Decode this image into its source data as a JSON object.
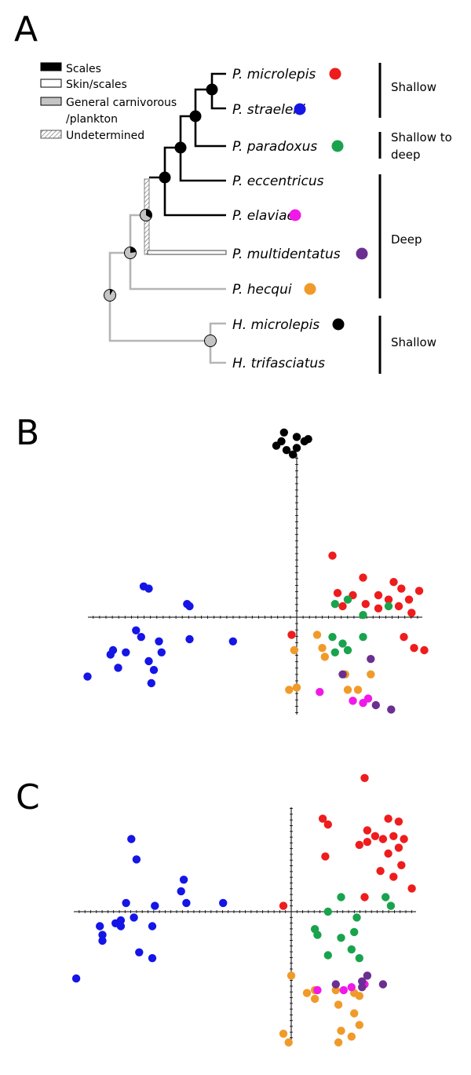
{
  "panels": {
    "a": "A",
    "b": "B",
    "c": "C"
  },
  "legend": {
    "items": [
      {
        "label": "Scales",
        "swatch": "solid-black"
      },
      {
        "label": "Skin/scales",
        "swatch": "white"
      },
      {
        "label": "General carnivorous",
        "swatch": "grey"
      },
      {
        "label": "/plankton",
        "swatch": "none"
      },
      {
        "label": "Undetermined",
        "swatch": "hatched"
      }
    ]
  },
  "tree": {
    "taxa": [
      {
        "name": "P. microlepis",
        "color": "#ee1c1c"
      },
      {
        "name": "P. straeleni",
        "color": "#1515e6"
      },
      {
        "name": "P. paradoxus",
        "color": "#19a34d"
      },
      {
        "name": "P. eccentricus",
        "color": ""
      },
      {
        "name": "P. elaviae",
        "color": "#f019e8"
      },
      {
        "name": "P. multidentatus",
        "color": "#6b2f91"
      },
      {
        "name": "P. hecqui",
        "color": "#f09a2a"
      },
      {
        "name": "H. microlepis",
        "color": "#000000"
      },
      {
        "name": "H. trifasciatus",
        "color": ""
      }
    ],
    "depth_groups": [
      {
        "lines": [
          "Shallow"
        ]
      },
      {
        "lines": [
          "Shallow to",
          "deep"
        ]
      },
      {
        "lines": [
          "Deep"
        ]
      },
      {
        "lines": [
          "Shallow"
        ]
      }
    ]
  },
  "chart_data": [
    {
      "type": "scatter",
      "title": "",
      "xlabel": "",
      "ylabel": "",
      "grid": false,
      "series": [
        {
          "color": "#000000",
          "points": [
            [
              -0.5,
              8.4
            ],
            [
              -0.8,
              7.8
            ],
            [
              -0.4,
              7.6
            ],
            [
              0.0,
              7.7
            ],
            [
              0.0,
              8.2
            ],
            [
              0.3,
              8.0
            ],
            [
              -0.15,
              7.4
            ],
            [
              -0.6,
              8.0
            ],
            [
              0.45,
              8.1
            ]
          ]
        },
        {
          "color": "#ee1c1c",
          "points": [
            [
              1.4,
              2.8
            ],
            [
              2.6,
              1.8
            ],
            [
              3.2,
              1.0
            ],
            [
              3.8,
              1.6
            ],
            [
              4.1,
              1.3
            ],
            [
              4.4,
              0.8
            ],
            [
              4.8,
              1.2
            ],
            [
              4.5,
              0.2
            ],
            [
              3.6,
              0.8
            ],
            [
              4.0,
              0.5
            ],
            [
              1.6,
              1.1
            ],
            [
              2.2,
              1.0
            ],
            [
              2.7,
              0.6
            ],
            [
              3.2,
              0.4
            ],
            [
              4.6,
              -1.4
            ],
            [
              4.2,
              -0.9
            ],
            [
              5.0,
              -1.5
            ],
            [
              -0.2,
              -0.8
            ],
            [
              1.8,
              0.5
            ]
          ]
        },
        {
          "color": "#19a34d",
          "points": [
            [
              2.0,
              0.8
            ],
            [
              1.5,
              0.6
            ],
            [
              3.6,
              0.5
            ],
            [
              2.6,
              0.1
            ],
            [
              1.4,
              -0.9
            ],
            [
              1.8,
              -1.2
            ],
            [
              2.6,
              -0.9
            ],
            [
              1.5,
              -1.6
            ],
            [
              2.0,
              -1.5
            ]
          ]
        },
        {
          "color": "#1515e6",
          "points": [
            [
              -6.0,
              1.4
            ],
            [
              -5.8,
              1.3
            ],
            [
              -4.3,
              0.6
            ],
            [
              -4.2,
              0.5
            ],
            [
              -6.3,
              -0.6
            ],
            [
              -6.1,
              -0.9
            ],
            [
              -5.4,
              -1.1
            ],
            [
              -7.2,
              -1.5
            ],
            [
              -7.3,
              -1.7
            ],
            [
              -6.7,
              -1.6
            ],
            [
              -5.3,
              -1.6
            ],
            [
              -5.8,
              -2.0
            ],
            [
              -7.0,
              -2.3
            ],
            [
              -5.6,
              -2.4
            ],
            [
              -8.2,
              -2.7
            ],
            [
              -5.7,
              -3.0
            ],
            [
              -4.2,
              -1.0
            ],
            [
              -2.5,
              -1.1
            ]
          ]
        },
        {
          "color": "#f09a2a",
          "points": [
            [
              0.8,
              -0.8
            ],
            [
              -0.1,
              -1.5
            ],
            [
              1.0,
              -1.4
            ],
            [
              1.1,
              -1.8
            ],
            [
              0.0,
              -3.2
            ],
            [
              -0.3,
              -3.3
            ],
            [
              1.9,
              -2.6
            ],
            [
              2.9,
              -2.6
            ],
            [
              2.0,
              -3.3
            ],
            [
              2.4,
              -3.3
            ]
          ]
        },
        {
          "color": "#f019e8",
          "points": [
            [
              0.9,
              -3.4
            ],
            [
              2.2,
              -3.8
            ],
            [
              2.6,
              -3.9
            ],
            [
              2.8,
              -3.7
            ]
          ]
        },
        {
          "color": "#6b2f91",
          "points": [
            [
              2.9,
              -1.9
            ],
            [
              1.8,
              -2.6
            ],
            [
              3.1,
              -4.0
            ],
            [
              3.7,
              -4.2
            ]
          ]
        }
      ]
    },
    {
      "type": "scatter",
      "title": "",
      "xlabel": "",
      "ylabel": "",
      "grid": false,
      "series": [
        {
          "color": "#ee1c1c",
          "points": [
            [
              2.8,
              4.6
            ],
            [
              1.2,
              3.2
            ],
            [
              1.4,
              3.0
            ],
            [
              2.9,
              2.8
            ],
            [
              3.7,
              3.2
            ],
            [
              4.1,
              3.1
            ],
            [
              2.9,
              2.4
            ],
            [
              3.2,
              2.6
            ],
            [
              3.5,
              2.5
            ],
            [
              3.9,
              2.6
            ],
            [
              4.3,
              2.5
            ],
            [
              4.1,
              2.2
            ],
            [
              2.6,
              2.3
            ],
            [
              3.7,
              2.0
            ],
            [
              4.2,
              1.6
            ],
            [
              1.3,
              1.9
            ],
            [
              3.4,
              1.4
            ],
            [
              3.9,
              1.2
            ],
            [
              4.6,
              0.8
            ],
            [
              2.8,
              0.5
            ],
            [
              -0.3,
              0.2
            ]
          ]
        },
        {
          "color": "#19a34d",
          "points": [
            [
              1.9,
              0.5
            ],
            [
              3.6,
              0.5
            ],
            [
              3.8,
              0.2
            ],
            [
              1.4,
              0.0
            ],
            [
              0.9,
              -0.6
            ],
            [
              1.0,
              -0.8
            ],
            [
              1.9,
              -0.9
            ],
            [
              2.4,
              -0.7
            ],
            [
              2.5,
              -0.2
            ],
            [
              1.4,
              -1.5
            ],
            [
              2.3,
              -1.3
            ],
            [
              2.6,
              -1.6
            ]
          ]
        },
        {
          "color": "#1515e6",
          "points": [
            [
              -6.1,
              2.5
            ],
            [
              -5.9,
              1.8
            ],
            [
              -4.1,
              1.1
            ],
            [
              -4.2,
              0.7
            ],
            [
              -6.3,
              0.3
            ],
            [
              -4.0,
              0.3
            ],
            [
              -5.2,
              0.2
            ],
            [
              -2.6,
              0.3
            ],
            [
              -6.0,
              -0.2
            ],
            [
              -6.5,
              -0.3
            ],
            [
              -6.7,
              -0.4
            ],
            [
              -6.5,
              -0.5
            ],
            [
              -5.3,
              -0.5
            ],
            [
              -7.3,
              -0.5
            ],
            [
              -7.2,
              -0.8
            ],
            [
              -7.2,
              -1.0
            ],
            [
              -5.8,
              -1.4
            ],
            [
              -5.3,
              -1.6
            ],
            [
              -8.2,
              -2.3
            ]
          ]
        },
        {
          "color": "#f09a2a",
          "points": [
            [
              0.0,
              -2.2
            ],
            [
              0.9,
              -2.7
            ],
            [
              0.6,
              -2.8
            ],
            [
              0.9,
              -3.0
            ],
            [
              1.7,
              -2.7
            ],
            [
              2.4,
              -2.8
            ],
            [
              2.6,
              -2.9
            ],
            [
              1.8,
              -3.2
            ],
            [
              2.4,
              -3.5
            ],
            [
              2.6,
              -3.9
            ],
            [
              -0.3,
              -4.2
            ],
            [
              -0.1,
              -4.5
            ],
            [
              1.9,
              -4.1
            ],
            [
              2.3,
              -4.3
            ],
            [
              1.8,
              -4.5
            ]
          ]
        },
        {
          "color": "#f019e8",
          "points": [
            [
              1.0,
              -2.7
            ],
            [
              2.0,
              -2.7
            ],
            [
              2.3,
              -2.6
            ],
            [
              2.8,
              -2.5
            ]
          ]
        },
        {
          "color": "#6b2f91",
          "points": [
            [
              2.9,
              -2.2
            ],
            [
              2.7,
              -2.4
            ],
            [
              1.7,
              -2.5
            ],
            [
              3.5,
              -2.5
            ],
            [
              2.7,
              -2.6
            ]
          ]
        }
      ]
    }
  ]
}
